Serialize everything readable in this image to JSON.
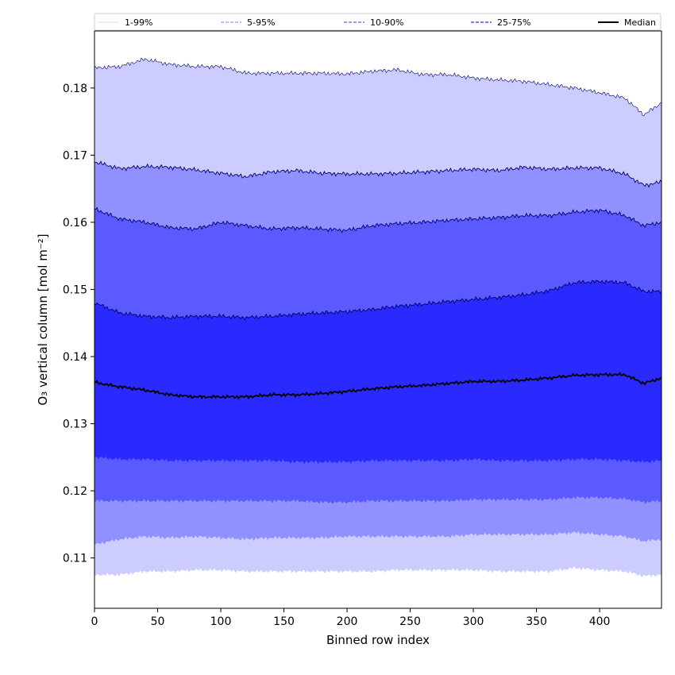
{
  "chart_data": {
    "type": "area",
    "xlabel": "Binned row index",
    "ylabel": "O₃ vertical column [mol m⁻²]",
    "xlim": [
      0,
      449
    ],
    "ylim": [
      0.1025,
      0.1885
    ],
    "x_ticks": [
      0,
      50,
      100,
      150,
      200,
      250,
      300,
      350,
      400
    ],
    "y_ticks": [
      0.11,
      0.12,
      0.13,
      0.14,
      0.15,
      0.16,
      0.17,
      0.18
    ],
    "y_tick_labels": [
      "0.11",
      "0.12",
      "0.13",
      "0.14",
      "0.15",
      "0.16",
      "0.17",
      "0.18"
    ],
    "legend_position": "top",
    "legend": [
      {
        "label": "1-99%",
        "color": "#ccccff",
        "style": "solid"
      },
      {
        "label": "5-95%",
        "color": "#9090ff",
        "style": "dashed"
      },
      {
        "label": "10-90%",
        "color": "#5a5aff",
        "style": "dashed"
      },
      {
        "label": "25-75%",
        "color": "#2a2aff",
        "style": "dashed"
      },
      {
        "label": "Median",
        "color": "#000000",
        "style": "solid"
      }
    ],
    "bands": [
      {
        "name": "1-99%",
        "color": "#ccccff",
        "x": [
          0,
          20,
          40,
          60,
          80,
          100,
          120,
          140,
          160,
          180,
          200,
          220,
          240,
          260,
          280,
          300,
          320,
          340,
          360,
          380,
          400,
          420,
          435,
          449
        ],
        "upper": [
          0.183,
          0.1832,
          0.1843,
          0.1835,
          0.1832,
          0.1832,
          0.1822,
          0.1822,
          0.1822,
          0.1822,
          0.1821,
          0.1825,
          0.1827,
          0.182,
          0.182,
          0.1815,
          0.1812,
          0.181,
          0.1805,
          0.18,
          0.1793,
          0.1785,
          0.176,
          0.1778
        ],
        "lower": [
          0.1075,
          0.1075,
          0.108,
          0.108,
          0.1082,
          0.1082,
          0.108,
          0.108,
          0.108,
          0.108,
          0.108,
          0.108,
          0.1082,
          0.1082,
          0.1082,
          0.1082,
          0.108,
          0.108,
          0.108,
          0.1085,
          0.1082,
          0.108,
          0.1073,
          0.1075
        ]
      },
      {
        "name": "5-95%",
        "color": "#9090ff",
        "x": [
          0,
          20,
          40,
          60,
          80,
          100,
          120,
          140,
          160,
          180,
          200,
          220,
          240,
          260,
          280,
          300,
          320,
          340,
          360,
          380,
          400,
          420,
          435,
          449
        ],
        "upper": [
          0.169,
          0.168,
          0.1683,
          0.1682,
          0.1678,
          0.1673,
          0.1668,
          0.1675,
          0.1677,
          0.1673,
          0.1672,
          0.1672,
          0.1673,
          0.1675,
          0.1677,
          0.1679,
          0.1677,
          0.1682,
          0.1679,
          0.1681,
          0.1681,
          0.1672,
          0.1655,
          0.166
        ],
        "lower": [
          0.112,
          0.1128,
          0.1132,
          0.113,
          0.1132,
          0.113,
          0.1128,
          0.113,
          0.113,
          0.113,
          0.1132,
          0.1132,
          0.1132,
          0.1132,
          0.1132,
          0.1135,
          0.1135,
          0.1135,
          0.1135,
          0.1138,
          0.1135,
          0.1132,
          0.1125,
          0.1128
        ]
      },
      {
        "name": "10-90%",
        "color": "#5a5aff",
        "x": [
          0,
          20,
          40,
          60,
          80,
          100,
          120,
          140,
          160,
          180,
          200,
          220,
          240,
          260,
          280,
          300,
          320,
          340,
          360,
          380,
          400,
          420,
          435,
          449
        ],
        "upper": [
          0.162,
          0.1605,
          0.16,
          0.1592,
          0.159,
          0.16,
          0.1595,
          0.159,
          0.1592,
          0.159,
          0.1588,
          0.1595,
          0.1598,
          0.16,
          0.1603,
          0.1605,
          0.1607,
          0.161,
          0.161,
          0.1615,
          0.1618,
          0.161,
          0.1595,
          0.16
        ],
        "lower": [
          0.1185,
          0.1185,
          0.1185,
          0.1185,
          0.1185,
          0.1185,
          0.1185,
          0.1185,
          0.1185,
          0.1183,
          0.1183,
          0.1185,
          0.1185,
          0.1185,
          0.1185,
          0.1187,
          0.1187,
          0.1187,
          0.1187,
          0.119,
          0.119,
          0.1188,
          0.1183,
          0.1185
        ]
      },
      {
        "name": "25-75%",
        "color": "#2a2aff",
        "x": [
          0,
          20,
          40,
          60,
          80,
          100,
          120,
          140,
          160,
          180,
          200,
          220,
          240,
          260,
          280,
          300,
          320,
          340,
          360,
          380,
          400,
          420,
          435,
          449
        ],
        "upper": [
          0.148,
          0.1465,
          0.146,
          0.1458,
          0.146,
          0.146,
          0.1458,
          0.146,
          0.1463,
          0.1465,
          0.1467,
          0.147,
          0.1475,
          0.1478,
          0.1482,
          0.1485,
          0.1488,
          0.1492,
          0.1498,
          0.151,
          0.1512,
          0.151,
          0.1497,
          0.1497
        ],
        "lower": [
          0.125,
          0.1247,
          0.1247,
          0.1245,
          0.1245,
          0.1245,
          0.1245,
          0.1245,
          0.1243,
          0.1243,
          0.1243,
          0.1245,
          0.1245,
          0.1245,
          0.1245,
          0.1247,
          0.1245,
          0.1245,
          0.1245,
          0.1247,
          0.1247,
          0.1245,
          0.1243,
          0.1245
        ]
      }
    ],
    "median": {
      "name": "Median",
      "color": "#000000",
      "x": [
        0,
        10,
        20,
        40,
        60,
        80,
        100,
        120,
        140,
        160,
        180,
        200,
        220,
        240,
        260,
        280,
        300,
        320,
        340,
        360,
        380,
        400,
        420,
        435,
        449
      ],
      "y": [
        0.1362,
        0.1358,
        0.1355,
        0.135,
        0.1343,
        0.134,
        0.134,
        0.134,
        0.1343,
        0.1343,
        0.1345,
        0.1348,
        0.1352,
        0.1355,
        0.1357,
        0.136,
        0.1363,
        0.1363,
        0.1365,
        0.1368,
        0.1372,
        0.1373,
        0.1373,
        0.136,
        0.1368
      ]
    }
  }
}
